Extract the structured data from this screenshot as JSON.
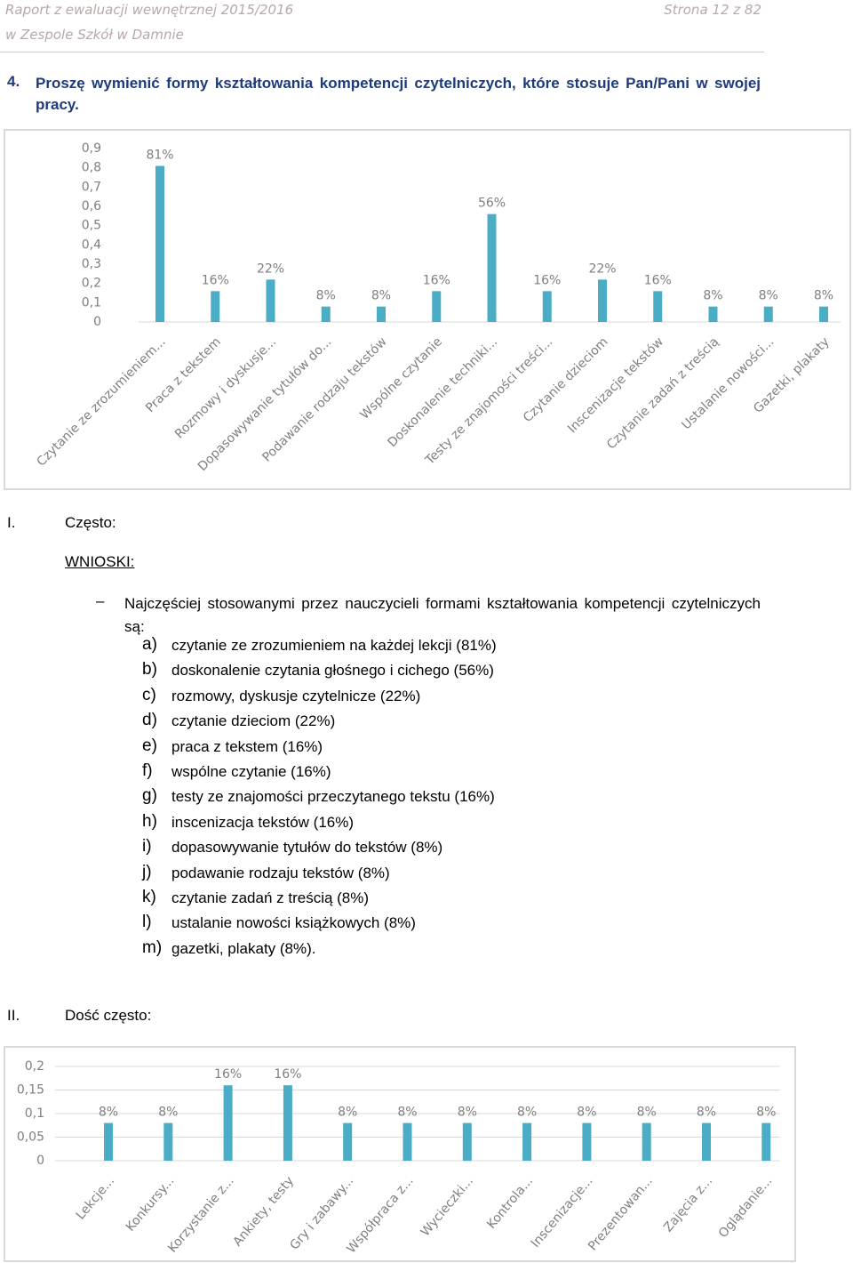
{
  "header": {
    "title": "Raport z ewaluacji wewnętrznej 2015/2016",
    "school": "w Zespole Szkół w Damnie",
    "page": "Strona 12 z 82"
  },
  "question": {
    "number": "4.",
    "text": "Proszę wymienić formy kształtowania kompetencji czytelniczych, które stosuje Pan/Pani w swojej pracy."
  },
  "section_1": {
    "numeral": "I.",
    "heading": "Często:"
  },
  "conclusions": {
    "heading": "WNIOSKI:",
    "intro": "Najczęściej stosowanymi przez nauczycieli formami kształtowania kompetencji czytelniczych są:",
    "items": [
      {
        "letter": "a)",
        "text": "czytanie ze zrozumieniem na każdej lekcji (81%)"
      },
      {
        "letter": "b)",
        "text": "doskonalenie czytania głośnego i cichego (56%)"
      },
      {
        "letter": "c)",
        "text": "rozmowy, dyskusje czytelnicze (22%)"
      },
      {
        "letter": "d)",
        "text": "czytanie dzieciom (22%)"
      },
      {
        "letter": "e)",
        "text": "praca z tekstem (16%)"
      },
      {
        "letter": "f)",
        "text": "wspólne czytanie (16%)"
      },
      {
        "letter": "g)",
        "text": "testy ze znajomości przeczytanego tekstu (16%)"
      },
      {
        "letter": "h)",
        "text": "inscenizacja tekstów (16%)"
      },
      {
        "letter": "i)",
        "text": "dopasowywanie tytułów do tekstów (8%)"
      },
      {
        "letter": "j)",
        "text": "podawanie rodzaju tekstów (8%)"
      },
      {
        "letter": "k)",
        "text": "czytanie zadań z treścią (8%)"
      },
      {
        "letter": "l)",
        "text": "ustalanie nowości książkowych (8%)"
      },
      {
        "letter": "m)",
        "text": "gazetki, plakaty (8%)."
      }
    ]
  },
  "section_2": {
    "numeral": "II.",
    "heading": "Dość często:"
  },
  "chart_data": [
    {
      "type": "bar",
      "color": "#4bacc6",
      "grid": false,
      "categories": [
        "Czytanie ze zrozumieniem...",
        "Praca z tekstem",
        "Rozmowy i dyskusje...",
        "Dopasowywanie tytułów do...",
        "Podawanie rodzaju tekstów",
        "Wspólne czytanie",
        "Doskonalenie techniki...",
        "Testy ze znajomości treści...",
        "Czytanie dzieciom",
        "Inscenizacje tekstów",
        "Czytanie zadań z treścią",
        "Ustalanie nowości...",
        "Gazetki, plakaty"
      ],
      "values": [
        0.81,
        0.16,
        0.22,
        0.08,
        0.08,
        0.16,
        0.56,
        0.16,
        0.22,
        0.16,
        0.08,
        0.08,
        0.08
      ],
      "value_labels": [
        "81%",
        "16%",
        "22%",
        "8%",
        "8%",
        "16%",
        "56%",
        "16%",
        "22%",
        "16%",
        "8%",
        "8%",
        "8%"
      ],
      "ylim": [
        0,
        0.9
      ],
      "yticks": [
        0,
        {
          "value": 0.1,
          "label": "0,1"
        },
        {
          "value": 0.2,
          "label": "0,2"
        },
        {
          "value": 0.3,
          "label": "0,3"
        },
        {
          "value": 0.4,
          "label": "0,4"
        },
        {
          "value": 0.5,
          "label": "0,5"
        },
        {
          "value": 0.6,
          "label": "0,6"
        },
        {
          "value": 0.7,
          "label": "0,7"
        },
        {
          "value": 0.8,
          "label": "0,8"
        },
        {
          "value": 0.9,
          "label": "0,9"
        }
      ]
    },
    {
      "type": "bar",
      "color": "#4bacc6",
      "grid": true,
      "categories": [
        "Lekcje...",
        "Konkursy...",
        "Korzystanie z...",
        "Ankiety, testy",
        "Gry i zabawy...",
        "Współpraca z...",
        "Wycieczki...",
        "Kontrola...",
        "Inscenizacje...",
        "Prezentowan...",
        "Zajęcia z...",
        "Oglądanie..."
      ],
      "values": [
        0.08,
        0.08,
        0.16,
        0.16,
        0.08,
        0.08,
        0.08,
        0.08,
        0.08,
        0.08,
        0.08,
        0.08
      ],
      "value_labels": [
        "8%",
        "8%",
        "16%",
        "16%",
        "8%",
        "8%",
        "8%",
        "8%",
        "8%",
        "8%",
        "8%",
        "8%"
      ],
      "ylim": [
        0,
        0.2
      ],
      "yticks": [
        0,
        {
          "value": 0.05,
          "label": "0,05"
        },
        {
          "value": 0.1,
          "label": "0,1"
        },
        {
          "value": 0.15,
          "label": "0,15"
        },
        {
          "value": 0.2,
          "label": "0,2"
        }
      ]
    }
  ]
}
